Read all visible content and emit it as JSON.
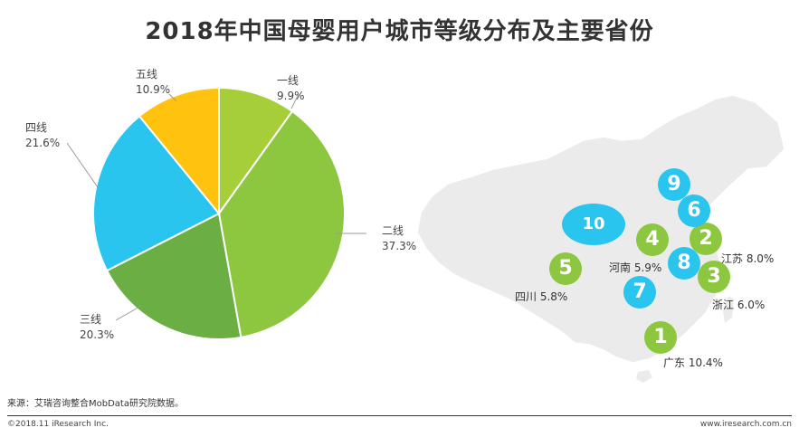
{
  "title": "2018年中国母婴用户城市等级分布及主要省份",
  "chart_data": [
    {
      "type": "pie",
      "slices": [
        {
          "label": "一线",
          "value": 9.9,
          "display": "9.9%",
          "color": "#A6CE39"
        },
        {
          "label": "二线",
          "value": 37.3,
          "display": "37.3%",
          "color": "#8DC63F"
        },
        {
          "label": "三线",
          "value": 20.3,
          "display": "20.3%",
          "color": "#6AAE44"
        },
        {
          "label": "四线",
          "value": 21.6,
          "display": "21.6%",
          "color": "#29C5EE"
        },
        {
          "label": "五线",
          "value": 10.9,
          "display": "10.9%",
          "color": "#FFC20E"
        }
      ]
    },
    {
      "type": "map",
      "ranked_markers": [
        {
          "rank": "1",
          "color": "#8DC63F"
        },
        {
          "rank": "2",
          "color": "#8DC63F"
        },
        {
          "rank": "3",
          "color": "#8DC63F"
        },
        {
          "rank": "4",
          "color": "#8DC63F"
        },
        {
          "rank": "5",
          "color": "#8DC63F"
        },
        {
          "rank": "6",
          "color": "#29C5EE"
        },
        {
          "rank": "7",
          "color": "#29C5EE"
        },
        {
          "rank": "8",
          "color": "#29C5EE"
        },
        {
          "rank": "9",
          "color": "#29C5EE"
        },
        {
          "rank": "10",
          "color": "#29C5EE"
        }
      ],
      "province_labels": [
        {
          "province": "广东",
          "value": "10.4%"
        },
        {
          "province": "江苏",
          "value": "8.0%"
        },
        {
          "province": "浙江",
          "value": "6.0%"
        },
        {
          "province": "河南",
          "value": "5.9%"
        },
        {
          "province": "四川",
          "value": "5.8%"
        }
      ]
    }
  ],
  "source": "来源：艾瑞咨询整合MobData研究院数据。",
  "footer": {
    "copyright": "©2018.11 iResearch Inc.",
    "website": "www.iresearch.com.cn"
  }
}
